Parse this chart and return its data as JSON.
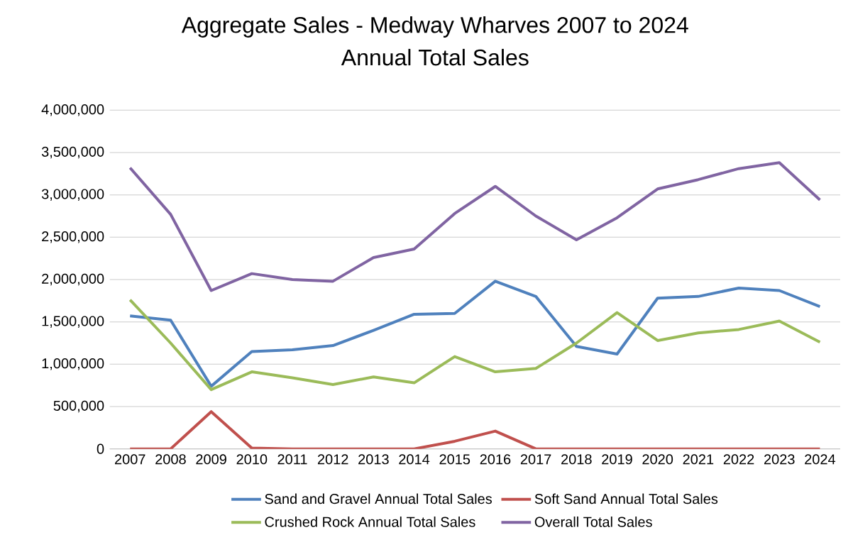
{
  "chart_data": {
    "type": "line",
    "title": "Aggregate Sales - Medway Wharves 2007 to 2024",
    "subtitle": "Annual Total Sales",
    "categories": [
      "2007",
      "2008",
      "2009",
      "2010",
      "2011",
      "2012",
      "2013",
      "2014",
      "2015",
      "2016",
      "2017",
      "2018",
      "2019",
      "2020",
      "2021",
      "2022",
      "2023",
      "2024"
    ],
    "series": [
      {
        "name": "Sand and Gravel Annual Total Sales",
        "color": "#4f81bd",
        "values": [
          1570000,
          1520000,
          740000,
          1150000,
          1170000,
          1220000,
          1400000,
          1590000,
          1600000,
          1980000,
          1800000,
          1210000,
          1120000,
          1780000,
          1800000,
          1900000,
          1870000,
          1680000
        ]
      },
      {
        "name": "Soft Sand Annual Total Sales",
        "color": "#c0504d",
        "values": [
          0,
          0,
          440000,
          10000,
          0,
          0,
          0,
          0,
          90000,
          210000,
          0,
          0,
          0,
          0,
          0,
          0,
          0,
          0
        ]
      },
      {
        "name": "Crushed Rock Annual Total Sales",
        "color": "#9bbb59",
        "values": [
          1760000,
          1250000,
          700000,
          910000,
          840000,
          760000,
          850000,
          780000,
          1090000,
          910000,
          950000,
          1250000,
          1610000,
          1280000,
          1370000,
          1410000,
          1510000,
          1260000
        ]
      },
      {
        "name": "Overall Total Sales",
        "color": "#8064a2",
        "values": [
          3320000,
          2770000,
          1870000,
          2070000,
          2000000,
          1980000,
          2260000,
          2360000,
          2780000,
          3100000,
          2750000,
          2470000,
          2730000,
          3070000,
          3180000,
          3310000,
          3380000,
          2940000
        ]
      }
    ],
    "ylim": [
      0,
      4000000
    ],
    "yticks": [
      {
        "value": 0,
        "label": "0"
      },
      {
        "value": 500000,
        "label": "500,000"
      },
      {
        "value": 1000000,
        "label": "1,000,000"
      },
      {
        "value": 1500000,
        "label": "1,500,000"
      },
      {
        "value": 2000000,
        "label": "2,000,000"
      },
      {
        "value": 2500000,
        "label": "2,500,000"
      },
      {
        "value": 3000000,
        "label": "3,000,000"
      },
      {
        "value": 3500000,
        "label": "3,500,000"
      },
      {
        "value": 4000000,
        "label": "4,000,000"
      }
    ],
    "grid": "y",
    "legend": "bottom",
    "marker": "none",
    "line_style": "solid"
  }
}
